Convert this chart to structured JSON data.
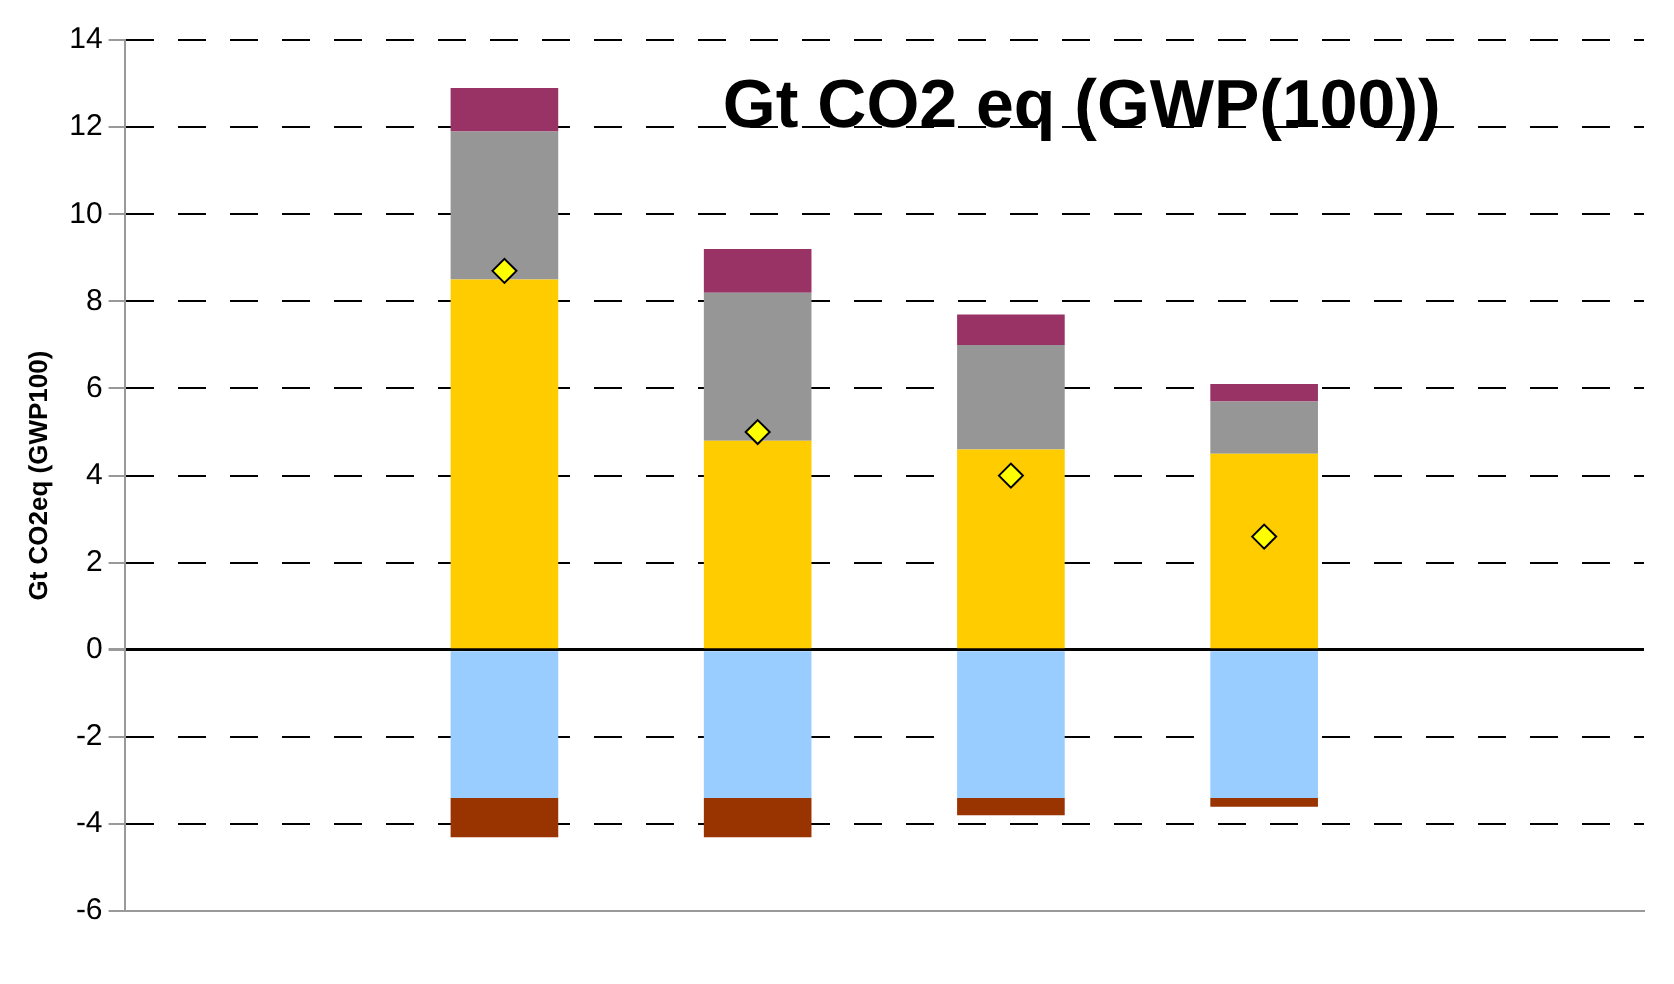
{
  "chart_data": {
    "type": "bar",
    "title": "Gt CO2 eq (GWP(100))",
    "ylabel": "Gt CO2eq (GWP100)",
    "categories": [
      null,
      null,
      null,
      null,
      null,
      null
    ],
    "stacked": true,
    "grid": "y",
    "legend": false,
    "marker": "diamond",
    "ylim": [
      -6,
      14
    ],
    "yticks": [
      -6,
      -4,
      -2,
      0,
      2,
      4,
      6,
      8,
      10,
      12,
      14
    ],
    "series": [
      {
        "color": "#ffcc00",
        "values": [
          null,
          8.5,
          4.8,
          4.6,
          4.5,
          null
        ]
      },
      {
        "color": "#969696",
        "values": [
          null,
          3.4,
          3.4,
          2.4,
          1.2,
          null
        ]
      },
      {
        "color": "#993366",
        "values": [
          null,
          1.0,
          1.0,
          0.7,
          0.4,
          null
        ]
      },
      {
        "color": "#99ccff",
        "values": [
          null,
          -3.4,
          -3.4,
          -3.4,
          -3.4,
          null
        ]
      },
      {
        "color": "#993300",
        "values": [
          null,
          -0.9,
          -0.9,
          -0.4,
          -0.2,
          null
        ]
      },
      {
        "type": "scatter",
        "color": "#ffff00",
        "values": [
          null,
          8.7,
          5.0,
          4.0,
          2.6,
          null
        ]
      }
    ]
  }
}
